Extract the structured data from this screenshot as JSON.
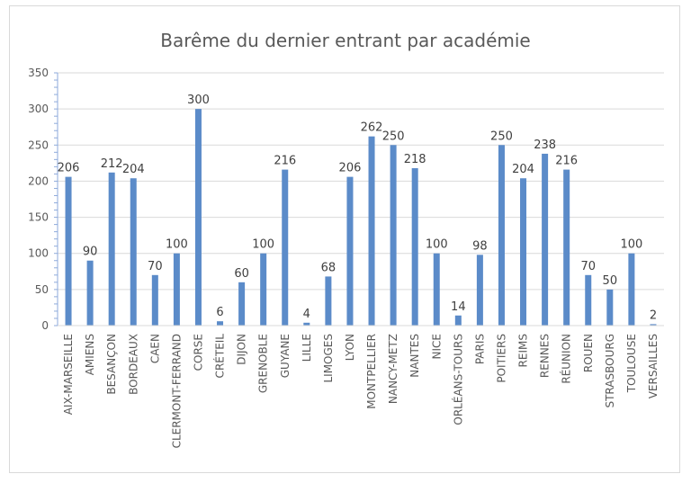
{
  "chart_data": {
    "type": "bar",
    "title": "Barême du dernier entrant par académie",
    "categories": [
      "AIX-MARSEILLE",
      "AMIENS",
      "BESANÇON",
      "BORDEAUX",
      "CAEN",
      "CLERMONT-FERRAND",
      "CORSE",
      "CRÉTEIL",
      "DIJON",
      "GRENOBLE",
      "GUYANE",
      "LILLE",
      "LIMOGES",
      "LYON",
      "MONTPELLIER",
      "NANCY-METZ",
      "NANTES",
      "NICE",
      "ORLÉANS-TOURS",
      "PARIS",
      "POITIERS",
      "REIMS",
      "RENNES",
      "RÉUNION",
      "ROUEN",
      "STRASBOURG",
      "TOULOUSE",
      "VERSAILLES"
    ],
    "values": [
      206,
      90,
      212,
      204,
      70,
      100,
      300,
      6,
      60,
      100,
      216,
      4,
      68,
      206,
      262,
      250,
      218,
      100,
      14,
      98,
      250,
      204,
      238,
      216,
      70,
      50,
      100,
      2
    ],
    "ylim": [
      0,
      350
    ],
    "yticks": [
      0,
      50,
      100,
      150,
      200,
      250,
      300,
      350
    ],
    "grid": true,
    "legend": "none",
    "bar_color": "#5b8bc9"
  }
}
